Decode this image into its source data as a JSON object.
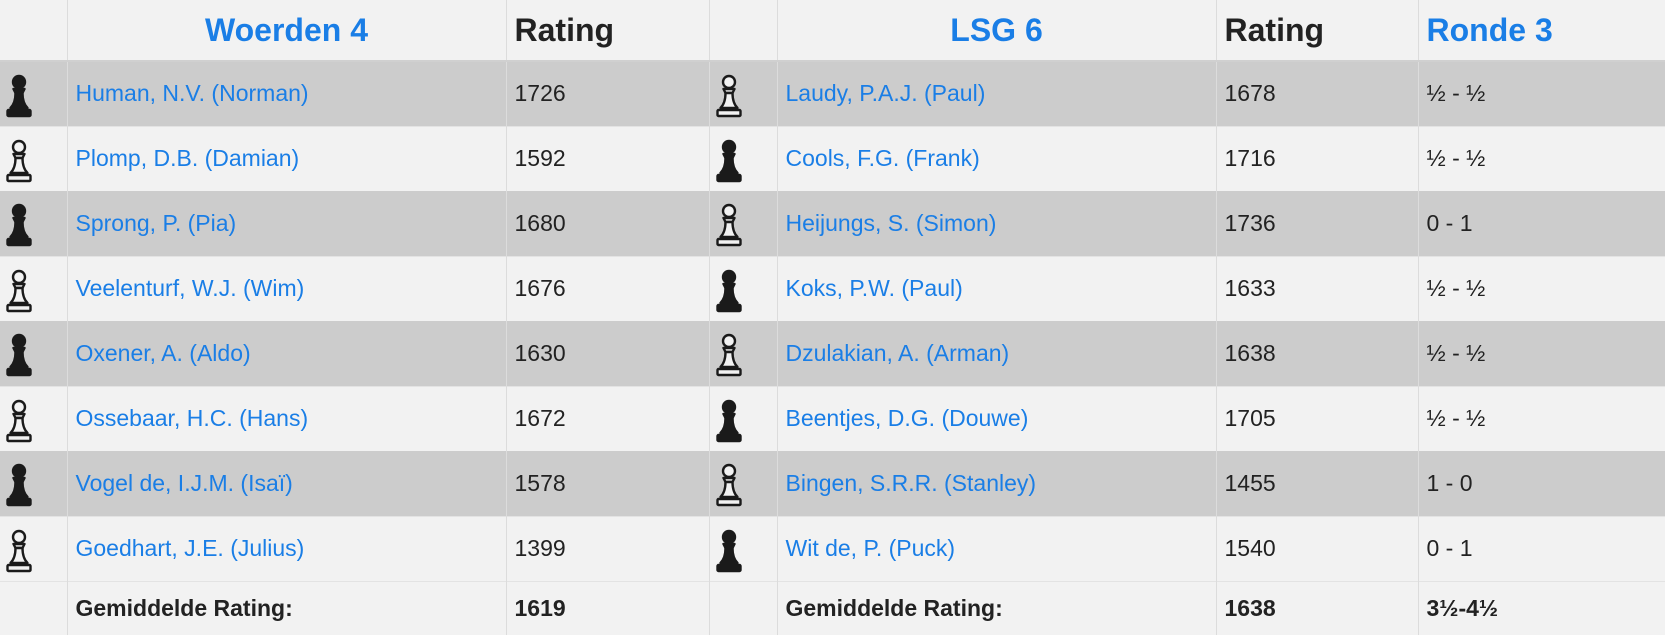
{
  "header": {
    "team1": "Woerden 4",
    "team1_rating_label": "Rating",
    "team2": "LSG 6",
    "team2_rating_label": "Rating",
    "round": "Ronde 3"
  },
  "boards": [
    {
      "p1_color": "black",
      "p1_name": "Human, N.V. (Norman)",
      "p1_rating": "1726",
      "p2_color": "white",
      "p2_name": "Laudy, P.A.J. (Paul)",
      "p2_rating": "1678",
      "result": "½ - ½"
    },
    {
      "p1_color": "white",
      "p1_name": "Plomp, D.B. (Damian)",
      "p1_rating": "1592",
      "p2_color": "black",
      "p2_name": "Cools, F.G. (Frank)",
      "p2_rating": "1716",
      "result": "½ - ½"
    },
    {
      "p1_color": "black",
      "p1_name": "Sprong, P. (Pia)",
      "p1_rating": "1680",
      "p2_color": "white",
      "p2_name": "Heijungs, S. (Simon)",
      "p2_rating": "1736",
      "result": "0 - 1"
    },
    {
      "p1_color": "white",
      "p1_name": "Veelenturf, W.J. (Wim)",
      "p1_rating": "1676",
      "p2_color": "black",
      "p2_name": "Koks, P.W. (Paul)",
      "p2_rating": "1633",
      "result": "½ - ½"
    },
    {
      "p1_color": "black",
      "p1_name": "Oxener, A. (Aldo)",
      "p1_rating": "1630",
      "p2_color": "white",
      "p2_name": "Dzulakian, A. (Arman)",
      "p2_rating": "1638",
      "result": "½ - ½"
    },
    {
      "p1_color": "white",
      "p1_name": "Ossebaar, H.C. (Hans)",
      "p1_rating": "1672",
      "p2_color": "black",
      "p2_name": "Beentjes, D.G. (Douwe)",
      "p2_rating": "1705",
      "result": "½ - ½"
    },
    {
      "p1_color": "black",
      "p1_name": "Vogel de, I.J.M. (Isaï)",
      "p1_rating": "1578",
      "p2_color": "white",
      "p2_name": "Bingen, S.R.R. (Stanley)",
      "p2_rating": "1455",
      "result": "1 - 0"
    },
    {
      "p1_color": "white",
      "p1_name": "Goedhart, J.E. (Julius)",
      "p1_rating": "1399",
      "p2_color": "black",
      "p2_name": "Wit de, P. (Puck)",
      "p2_rating": "1540",
      "result": "0 - 1"
    }
  ],
  "footer": {
    "avg_label_1": "Gemiddelde Rating:",
    "avg_1": "1619",
    "avg_label_2": "Gemiddelde Rating:",
    "avg_2": "1638",
    "total": "3½-4½"
  },
  "colors": {
    "link": "#1a7ee6",
    "shade_row": "#cccccc",
    "plain_row": "#f2f2f2"
  },
  "icons": {
    "black": "black-pawn-icon",
    "white": "white-pawn-icon"
  }
}
